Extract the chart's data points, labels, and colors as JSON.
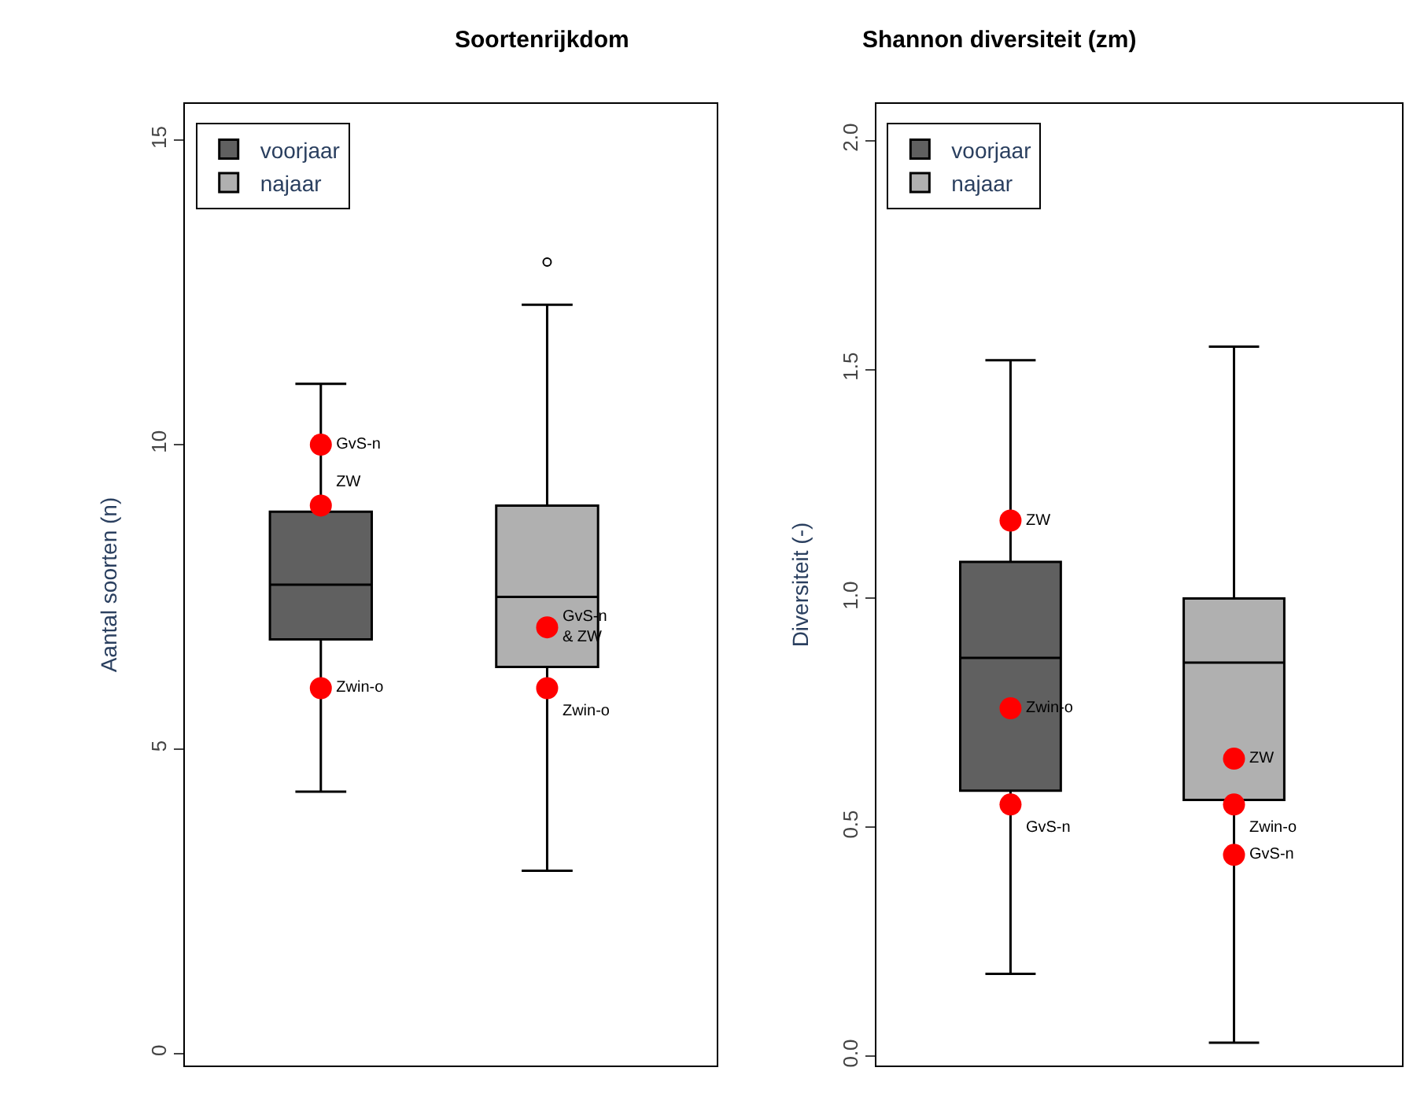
{
  "chart_data": [
    {
      "type": "box",
      "title": "Soortenrijkdom",
      "ylabel": "Aantal soorten (n)",
      "categories": [
        null,
        null
      ],
      "ylim": [
        -0.2,
        15.6
      ],
      "yticks": [
        0,
        5,
        10,
        15
      ],
      "tick_labels": "y",
      "legend": "top left",
      "series": [
        {
          "name": "voorjaar",
          "color": "#606060",
          "boxes": [
            {
              "low": 4.3,
              "q1": 6.8,
              "median": 7.7,
              "q3": 8.9,
              "high": 11.0
            },
            null
          ]
        },
        {
          "name": "najaar",
          "color": "#b0b0b0",
          "boxes": [
            null,
            {
              "low": 3.0,
              "q1": 6.35,
              "median": 7.5,
              "q3": 9.0,
              "high": 12.3,
              "outliers": [
                13.0
              ]
            }
          ]
        },
        {
          "type": "scatter",
          "color": "#ff0000",
          "marker": "circle",
          "values": [
            10,
            7
          ],
          "value_labels": [
            "GvS-n",
            "GvS-n\n& ZW"
          ]
        },
        {
          "type": "scatter",
          "color": "#ff0000",
          "marker": "circle",
          "values": [
            9,
            6
          ],
          "value_labels": [
            "ZW",
            "Zwin-o"
          ]
        },
        {
          "type": "scatter",
          "color": "#ff0000",
          "marker": "circle",
          "values": [
            6,
            null
          ],
          "value_labels": [
            "Zwin-o",
            null
          ]
        }
      ]
    },
    {
      "type": "box",
      "title": "Shannon diversiteit (zm)",
      "ylabel": "Diversiteit (-)",
      "categories": [
        null,
        null
      ],
      "ylim": [
        -0.02,
        2.08
      ],
      "yticks": [
        {
          "value": 0,
          "label": "0.0"
        },
        {
          "value": 0.5,
          "label": "0.5"
        },
        {
          "value": 1,
          "label": "1.0"
        },
        {
          "value": 1.5,
          "label": "1.5"
        },
        {
          "value": 2,
          "label": "2.0"
        }
      ],
      "tick_labels": "y",
      "legend": "top left",
      "series": [
        {
          "name": "voorjaar",
          "color": "#606060",
          "boxes": [
            {
              "low": 0.18,
              "q1": 0.58,
              "median": 0.87,
              "q3": 1.08,
              "high": 1.52
            },
            null
          ]
        },
        {
          "name": "najaar",
          "color": "#b0b0b0",
          "boxes": [
            null,
            {
              "low": 0.03,
              "q1": 0.56,
              "median": 0.86,
              "q3": 1.0,
              "high": 1.55
            }
          ]
        },
        {
          "type": "scatter",
          "color": "#ff0000",
          "marker": "circle",
          "values": [
            1.17,
            0.65
          ],
          "value_labels": [
            "ZW",
            "ZW"
          ]
        },
        {
          "type": "scatter",
          "color": "#ff0000",
          "marker": "circle",
          "values": [
            0.76,
            0.55
          ],
          "value_labels": [
            "Zwin-o",
            "Zwin-o"
          ]
        },
        {
          "type": "scatter",
          "color": "#ff0000",
          "marker": "circle",
          "values": [
            0.55,
            0.44
          ],
          "value_labels": [
            "GvS-n",
            "GvS-n"
          ]
        }
      ]
    }
  ]
}
